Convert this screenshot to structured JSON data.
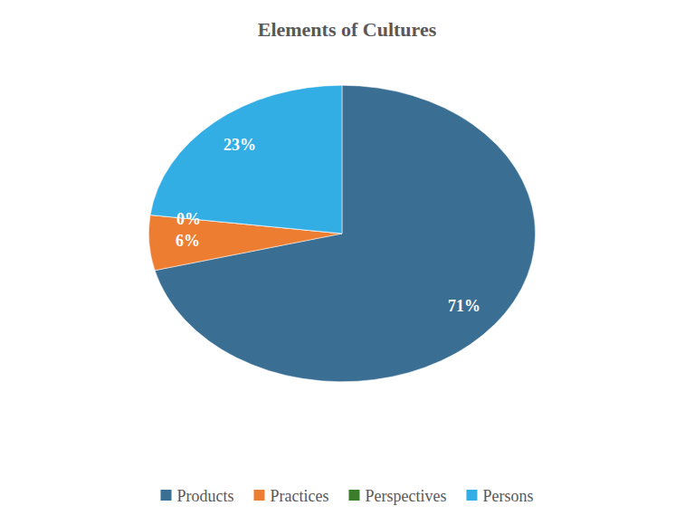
{
  "chart_data": {
    "type": "pie",
    "title": "Elements of Cultures",
    "categories": [
      "Products",
      "Practices",
      "Perspectives",
      "Persons"
    ],
    "values": [
      71,
      6,
      0,
      23
    ],
    "value_labels": [
      "71%",
      "6%",
      "0%",
      "23%"
    ],
    "colors": [
      "#3a6f93",
      "#ed7d31",
      "#3b7d2b",
      "#33aee5"
    ],
    "data_labels": true,
    "legend": "bottom"
  }
}
